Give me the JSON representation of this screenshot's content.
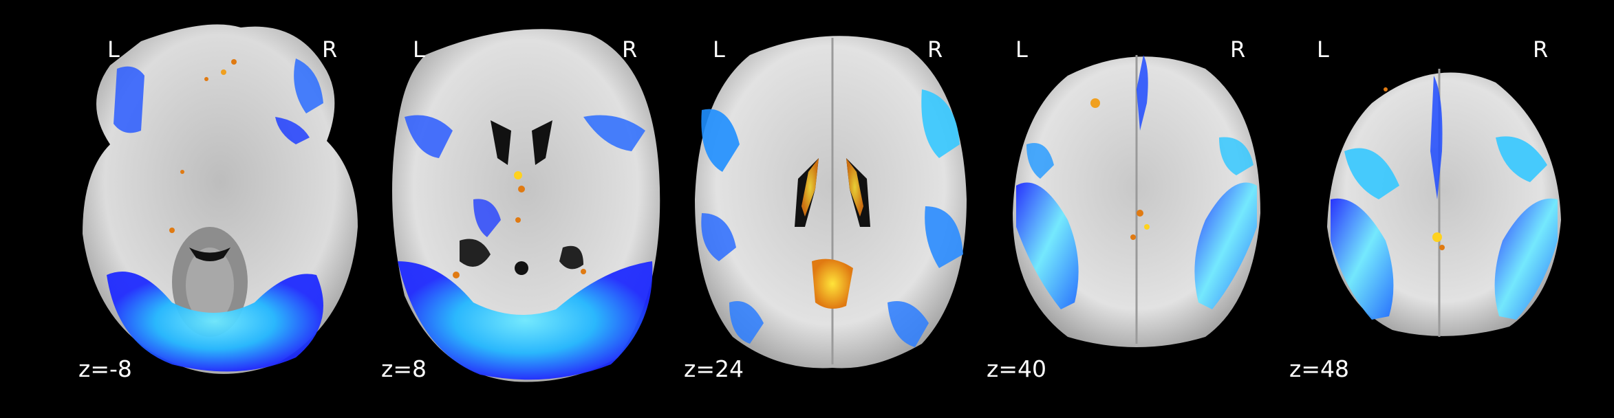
{
  "figure": {
    "background": "#000000",
    "colors": {
      "negative_core": "#1f2bff",
      "negative_peak": "#35d8ff",
      "positive_core": "#e07a12",
      "positive_peak": "#ffe43a",
      "brain_light": "#d9d9d9",
      "brain_dark": "#7a7a7a"
    },
    "slices": [
      {
        "left_label": "L",
        "right_label": "R",
        "z_label": "z=-8"
      },
      {
        "left_label": "L",
        "right_label": "R",
        "z_label": "z=8"
      },
      {
        "left_label": "L",
        "right_label": "R",
        "z_label": "z=24"
      },
      {
        "left_label": "L",
        "right_label": "R",
        "z_label": "z=40"
      },
      {
        "left_label": "L",
        "right_label": "R",
        "z_label": "z=48"
      }
    ]
  }
}
